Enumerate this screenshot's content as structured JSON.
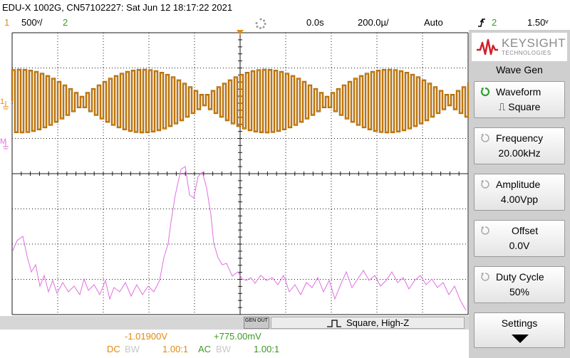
{
  "title_bar": {
    "text": "EDU-X 1002G, CN57102227: Sat Jun 12 18:17:22 2021"
  },
  "status_bar": {
    "ch1_num": "1",
    "ch1_scale": "500ᵛ/",
    "ch2_num": "2",
    "time_delay": "0.0s",
    "time_scale": "200.0µ/",
    "trigger_mode": "Auto",
    "trigger_ch": "2",
    "trigger_level": "1.50ᵛ"
  },
  "sidebar": {
    "brand": "KEYSIGHT",
    "brand_sub": "TECHNOLOGIES",
    "menu_title": "Wave Gen",
    "softkeys": [
      {
        "label": "Waveform",
        "value": "⎍ Square"
      },
      {
        "label": "Frequency",
        "value": "20.00kHz"
      },
      {
        "label": "Amplitude",
        "value": "4.00Vpp"
      },
      {
        "label": "Offset",
        "value": "0.0V"
      },
      {
        "label": "Duty Cycle",
        "value": "50%"
      },
      {
        "label": "Settings",
        "value": ""
      }
    ]
  },
  "wavegen_bar": {
    "gen_out": "GEN OUT",
    "status": "Square, High-Z"
  },
  "measurements": {
    "ch1_value": "-1.01900V",
    "ch2_value": "+775.00mV",
    "ch1_coupling": "DC",
    "ch1_bw": "BW",
    "ch1_probe": "1.00:1",
    "ch2_coupling": "AC",
    "ch2_bw": "BW",
    "ch2_probe": "1.00:1"
  },
  "channel_markers": {
    "ch1": "1",
    "ch2": "M"
  },
  "colors": {
    "ch1": "#e08a10",
    "ch2": "#3a9a20",
    "math": "#e070e0",
    "brand_red": "#d0202a"
  }
}
